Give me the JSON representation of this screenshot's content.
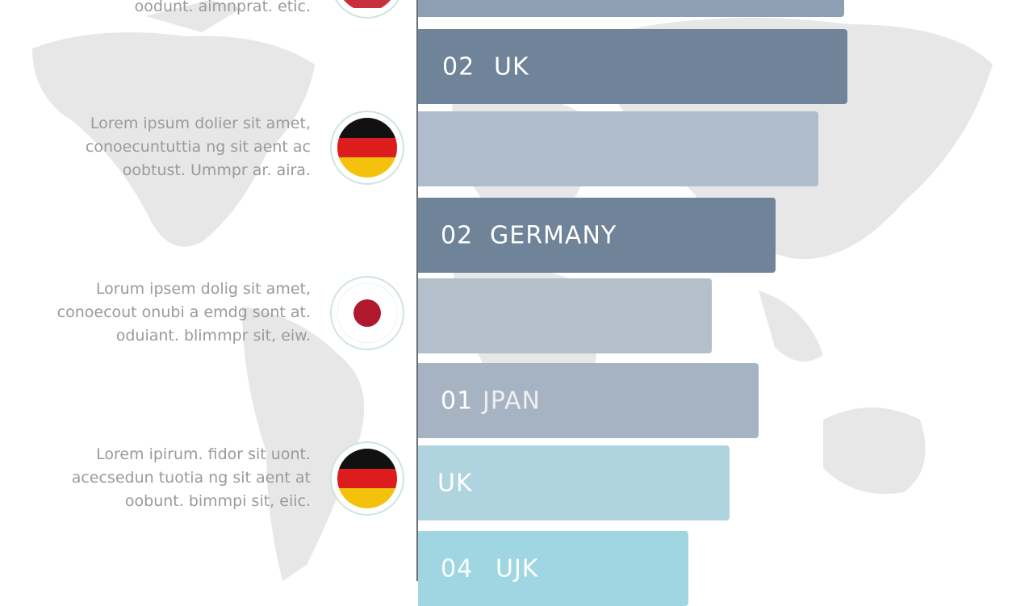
{
  "rows": [
    {
      "lines": [
        "oodunt. aimnprat. etic."
      ]
    },
    {
      "lines": [
        "Lorem ipsum dolier sit amet,",
        "conoecuntuttia ng sit aent ac",
        "oobtust. Ummpr ar. aira."
      ]
    },
    {
      "lines": [
        "Lorum ipsem dolig sit amet,",
        "conoecout onubi a emdg sont at.",
        "oduiant. blimmpr sit, eiw."
      ]
    },
    {
      "lines": [
        "Lorem ipirum. fidor sit uont.",
        "acecsedun tuotia ng sit aent at",
        "oobunt. bimmpi sit, eiic."
      ]
    }
  ],
  "bars": [
    {
      "number": "02",
      "label": "UK"
    },
    {
      "number": "02",
      "label": "GERMANY"
    },
    {
      "number": "01",
      "label": "JPAN"
    },
    {
      "label": "UK"
    },
    {
      "number": "04",
      "label": "UJK"
    }
  ]
}
